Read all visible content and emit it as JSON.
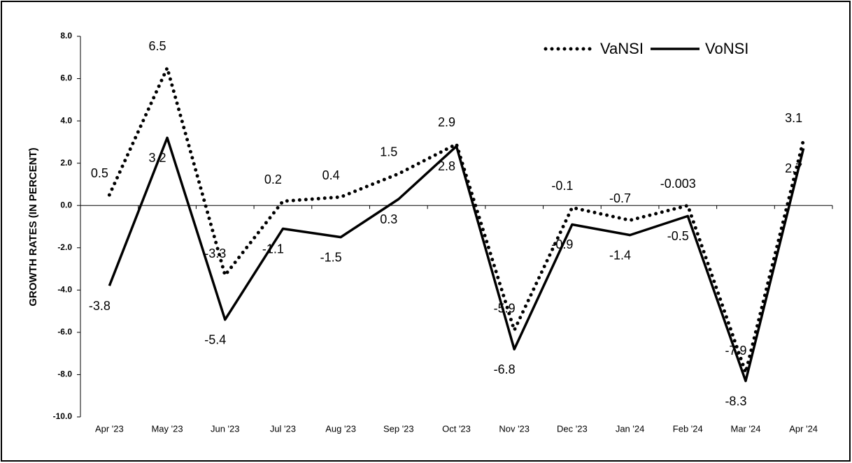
{
  "chart_data": {
    "type": "line",
    "y_label": "GROWTH RATES (IN PERCENT)",
    "categories": [
      "Apr '23",
      "May '23",
      "Jun '23",
      "Jul '23",
      "Aug '23",
      "Sep '23",
      "Oct '23",
      "Nov '23",
      "Dec '23",
      "Jan '24",
      "Feb '24",
      "Mar '24",
      "Apr '24"
    ],
    "series": [
      {
        "name": "VaNSI",
        "color": "#000000",
        "style": "dotted",
        "values": [
          0.5,
          6.5,
          -3.3,
          0.2,
          0.4,
          1.5,
          2.9,
          -5.9,
          -0.1,
          -0.7,
          -0.003,
          -7.9,
          3.1
        ]
      },
      {
        "name": "VoNSI",
        "color": "#000000",
        "style": "solid",
        "values": [
          -3.8,
          3.2,
          -5.4,
          -1.1,
          -1.5,
          0.3,
          2.8,
          -6.8,
          -0.9,
          -1.4,
          -0.5,
          -8.3,
          2.7
        ]
      }
    ],
    "ylim": [
      -10,
      8
    ],
    "yticks": [
      {
        "value": -10,
        "label": "-10.0"
      },
      {
        "value": -8,
        "label": "-8.0"
      },
      {
        "value": -6,
        "label": "-6.0"
      },
      {
        "value": -4,
        "label": "-4.0"
      },
      {
        "value": -2,
        "label": "-2.0"
      },
      {
        "value": 0,
        "label": "0.0"
      },
      {
        "value": 2,
        "label": "2.0"
      },
      {
        "value": 4,
        "label": "4.0"
      },
      {
        "value": 6,
        "label": "6.0"
      },
      {
        "value": 8,
        "label": "8.0"
      }
    ],
    "legend": "top-right"
  }
}
